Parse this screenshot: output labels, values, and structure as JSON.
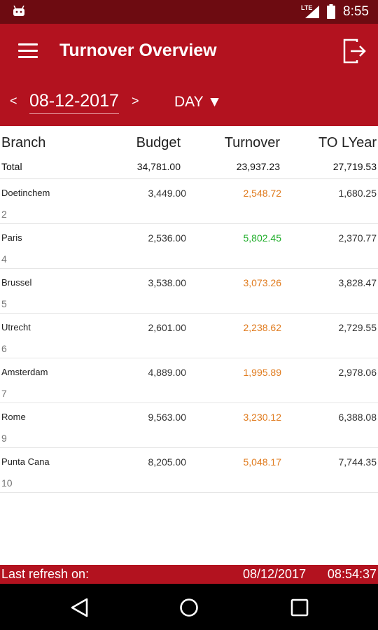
{
  "status_bar": {
    "network": "LTE",
    "time": "8:55"
  },
  "app_bar": {
    "title": "Turnover Overview",
    "prev_label": "<",
    "next_label": ">",
    "date": "08-12-2017",
    "period": "DAY ▼"
  },
  "table": {
    "headers": {
      "branch": "Branch",
      "budget": "Budget",
      "turnover": "Turnover",
      "lyear": "TO LYear"
    },
    "total": {
      "label": "Total",
      "budget": "34,781.00",
      "turnover": "23,937.23",
      "lyear": "27,719.53"
    },
    "rows": [
      {
        "branch": "Doetinchem",
        "number": "2",
        "budget": "3,449.00",
        "turnover": "2,548.72",
        "turnover_color": "#e07b1e",
        "lyear": "1,680.25"
      },
      {
        "branch": "Paris",
        "number": "4",
        "budget": "2,536.00",
        "turnover": "5,802.45",
        "turnover_color": "#1fae2a",
        "lyear": "2,370.77"
      },
      {
        "branch": "Brussel",
        "number": "5",
        "budget": "3,538.00",
        "turnover": "3,073.26",
        "turnover_color": "#e07b1e",
        "lyear": "3,828.47"
      },
      {
        "branch": "Utrecht",
        "number": "6",
        "budget": "2,601.00",
        "turnover": "2,238.62",
        "turnover_color": "#e07b1e",
        "lyear": "2,729.55"
      },
      {
        "branch": "Amsterdam",
        "number": "7",
        "budget": "4,889.00",
        "turnover": "1,995.89",
        "turnover_color": "#e07b1e",
        "lyear": "2,978.06"
      },
      {
        "branch": "Rome",
        "number": "9",
        "budget": "9,563.00",
        "turnover": "3,230.12",
        "turnover_color": "#e07b1e",
        "lyear": "6,388.08"
      },
      {
        "branch": "Punta Cana",
        "number": "10",
        "budget": "8,205.00",
        "turnover": "5,048.17",
        "turnover_color": "#e07b1e",
        "lyear": "7,744.35"
      }
    ]
  },
  "footer": {
    "refresh_label": "Last refresh on:",
    "refresh_date": "08/12/2017",
    "refresh_time": "08:54:37"
  },
  "colors": {
    "primary": "#b3121f",
    "status_bar": "#6d0b11",
    "below_budget": "#e07b1e",
    "above_budget": "#1fae2a"
  },
  "icons": {
    "status": [
      "android-icon",
      "signal-icon",
      "battery-icon"
    ],
    "app_bar": [
      "menu-icon",
      "logout-icon"
    ],
    "nav": [
      "back-icon",
      "home-icon",
      "recent-apps-icon"
    ]
  }
}
